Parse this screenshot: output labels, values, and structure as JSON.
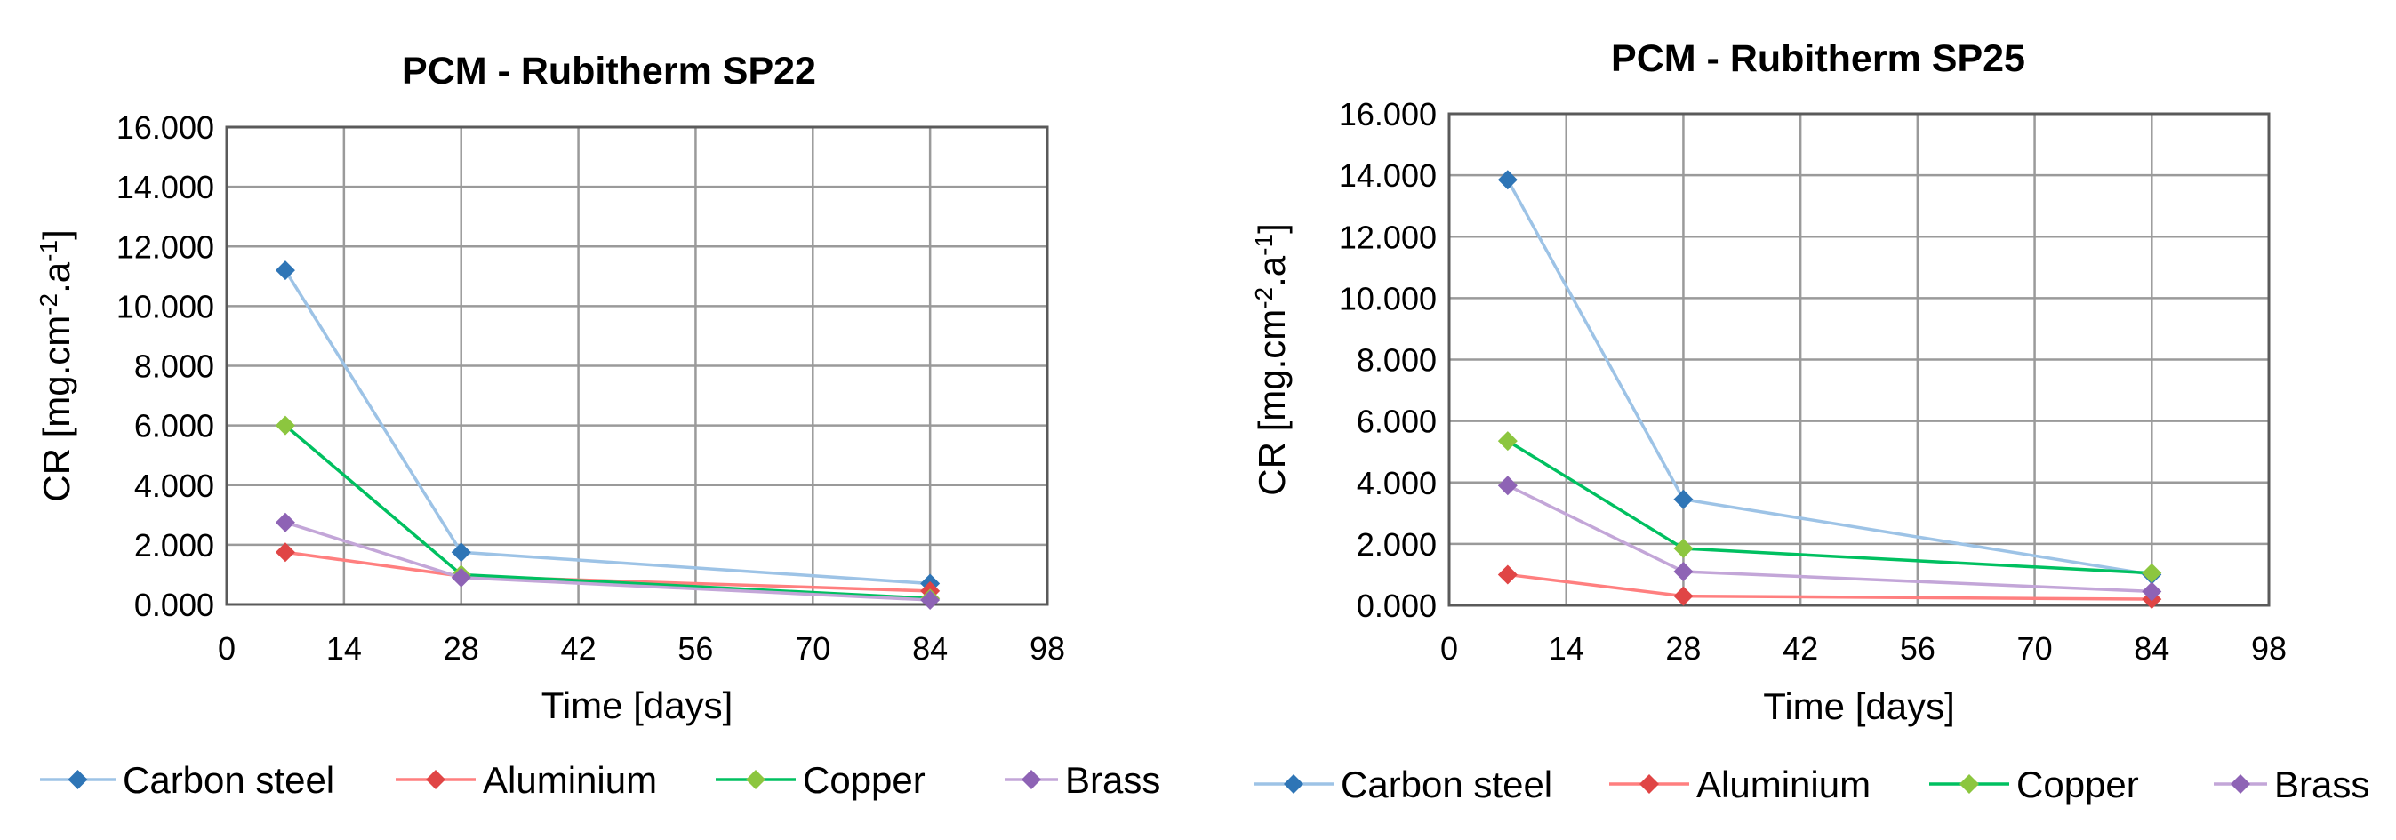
{
  "chart_data": [
    {
      "type": "line",
      "title": "PCM - Rubitherm SP22",
      "xlabel": "Time [days]",
      "ylabel_main": "CR [mg.cm",
      "ylabel_sup1": "-2",
      "ylabel_mid": ".a",
      "ylabel_sup2": "-1",
      "ylabel_end": "]",
      "xlim": [
        0,
        98
      ],
      "ylim": [
        0,
        16
      ],
      "x_ticks": [
        "0",
        "14",
        "28",
        "42",
        "56",
        "70",
        "84",
        "98"
      ],
      "y_ticks": [
        "0.000",
        "2.000",
        "4.000",
        "6.000",
        "8.000",
        "10.000",
        "12.000",
        "14.000",
        "16.000"
      ],
      "grid": true,
      "legend_position": "bottom",
      "x": [
        7,
        28,
        84
      ],
      "series": [
        {
          "name": "Carbon steel",
          "color": "#9dc3e6",
          "marker_color": "#2e75b6",
          "values": [
            11.2,
            1.75,
            0.7
          ]
        },
        {
          "name": "Aluminium",
          "color": "#ff7f7f",
          "marker_color": "#e04545",
          "values": [
            1.75,
            0.95,
            0.45
          ]
        },
        {
          "name": "Copper",
          "color": "#00c060",
          "marker_color": "#8cc63f",
          "values": [
            6.0,
            1.0,
            0.2
          ]
        },
        {
          "name": "Brass",
          "color": "#c3a6d8",
          "marker_color": "#8e63b5",
          "values": [
            2.75,
            0.9,
            0.15
          ]
        }
      ]
    },
    {
      "type": "line",
      "title": "PCM - Rubitherm SP25",
      "xlabel": "Time [days]",
      "ylabel_main": "CR [mg.cm",
      "ylabel_sup1": "-2",
      "ylabel_mid": ".a",
      "ylabel_sup2": "-1",
      "ylabel_end": "]",
      "xlim": [
        0,
        98
      ],
      "ylim": [
        0,
        16
      ],
      "x_ticks": [
        "0",
        "14",
        "28",
        "42",
        "56",
        "70",
        "84",
        "98"
      ],
      "y_ticks": [
        "0.000",
        "2.000",
        "4.000",
        "6.000",
        "8.000",
        "10.000",
        "12.000",
        "14.000",
        "16.000"
      ],
      "grid": true,
      "legend_position": "bottom",
      "x": [
        7,
        28,
        84
      ],
      "series": [
        {
          "name": "Carbon steel",
          "color": "#9dc3e6",
          "marker_color": "#2e75b6",
          "values": [
            13.85,
            3.45,
            1.0
          ]
        },
        {
          "name": "Aluminium",
          "color": "#ff7f7f",
          "marker_color": "#e04545",
          "values": [
            1.0,
            0.3,
            0.2
          ]
        },
        {
          "name": "Copper",
          "color": "#00c060",
          "marker_color": "#8cc63f",
          "values": [
            5.35,
            1.85,
            1.05
          ]
        },
        {
          "name": "Brass",
          "color": "#c3a6d8",
          "marker_color": "#8e63b5",
          "values": [
            3.9,
            1.1,
            0.45
          ]
        }
      ]
    }
  ]
}
